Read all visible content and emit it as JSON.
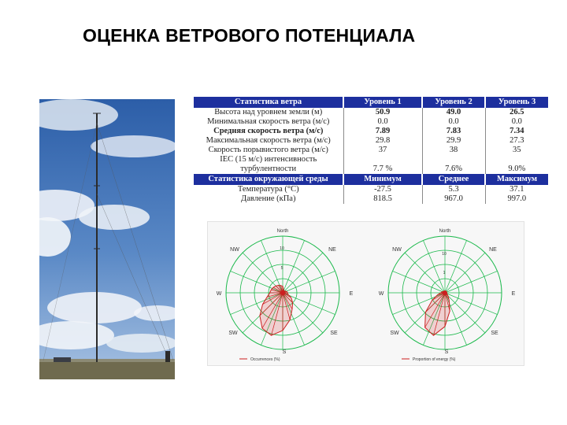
{
  "title": "ОЦЕНКА ВЕТРОВОГО ПОТЕНЦИАЛА",
  "wind_stats": {
    "header": [
      "Статистика ветра",
      "Уровень 1",
      "Уровень 2",
      "Уровень 3"
    ],
    "rows": [
      {
        "label": "Высота над уровнем земли (м)",
        "values": [
          "50.9",
          "49.0",
          "26.5"
        ],
        "bold": false
      },
      {
        "label": "Минимальная скорость ветра (м/с)",
        "values": [
          "0.0",
          "0.0",
          "0.0"
        ],
        "bold": false
      },
      {
        "label": "Средняя скорость ветра (м/с)",
        "values": [
          "7.89",
          "7.83",
          "7.34"
        ],
        "bold": true
      },
      {
        "label": "Максимальная скорость ветра (м/с)",
        "values": [
          "29.8",
          "29.9",
          "27.3"
        ],
        "bold": false
      },
      {
        "label": "Скорость порывистого ветра (м/с)",
        "values": [
          "37",
          "38",
          "35"
        ],
        "bold": false
      }
    ],
    "iec_label_1": "IEC (15 м/с) интенсивность",
    "iec_label_2": "турбулентности",
    "iec_values": [
      "7.7 %",
      "7.6%",
      "9.0%"
    ]
  },
  "env_stats": {
    "header": [
      "Статистика окружающей среды",
      "Минимум",
      "Среднее",
      "Максимум"
    ],
    "rows": [
      {
        "label": "Температура (°C)",
        "values": [
          "-27.5",
          "5.3",
          "37.1"
        ]
      },
      {
        "label": "Давление (кПа)",
        "values": [
          "818.5",
          "967.0",
          "997.0"
        ]
      }
    ]
  },
  "wind_roses": [
    {
      "directions": {
        "n": "North",
        "ne": "NE",
        "e": "E",
        "se": "SE",
        "s": "S",
        "sw": "SW",
        "w": "W",
        "nw": "NW"
      },
      "ring_labels": [
        "5",
        "10"
      ],
      "legend": "Occurrences (%)",
      "sector_values": [
        1.2,
        0.6,
        0.5,
        0.4,
        0.6,
        0.8,
        0.9,
        1.0,
        1.8,
        2.6,
        3.5,
        5.2,
        7.0,
        8.2,
        7.6,
        6.0,
        4.3,
        3.0,
        2.4,
        2.2,
        2.0,
        1.8,
        1.6,
        1.4
      ]
    },
    {
      "directions": {
        "n": "North",
        "ne": "NE",
        "e": "E",
        "se": "SE",
        "s": "S",
        "sw": "SW",
        "w": "W",
        "nw": "NW"
      },
      "ring_labels": [
        "1",
        "10"
      ],
      "legend": "Proportion of energy (%)",
      "sector_values": [
        0.2,
        0.1,
        0.1,
        0.1,
        0.1,
        0.2,
        0.3,
        0.4,
        0.6,
        1.0,
        2.0,
        4.5,
        8.0,
        10.5,
        9.5,
        6.5,
        3.5,
        1.8,
        1.0,
        0.8,
        0.6,
        0.4,
        0.3,
        0.2
      ]
    }
  ],
  "colors": {
    "header_blue": "#1d2f9e",
    "rose_grid": "#19b84a",
    "rose_fill": "#cc1f1f"
  }
}
